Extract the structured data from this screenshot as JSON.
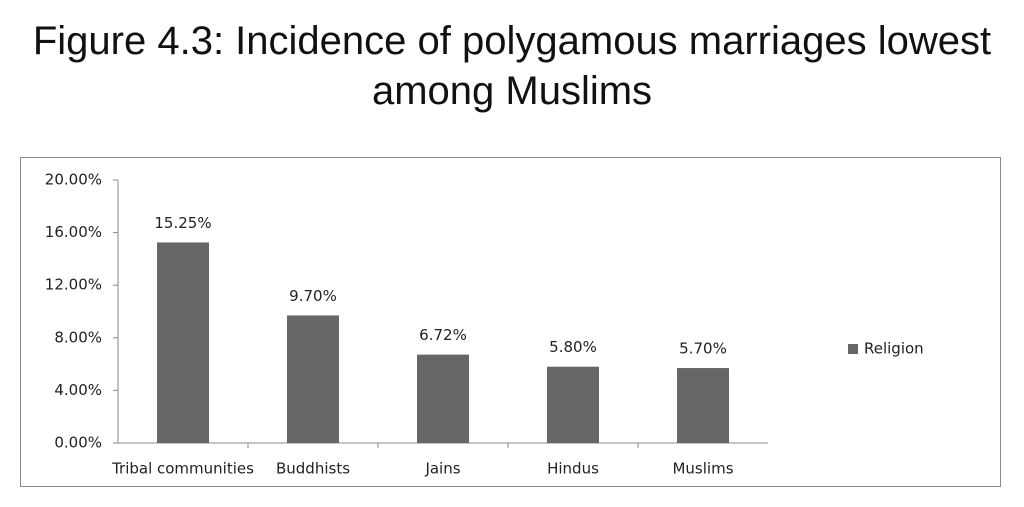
{
  "chart_data": {
    "type": "bar",
    "title": "Figure 4.3: Incidence of polygamous marriages lowest among Muslims",
    "categories": [
      "Tribal communities",
      "Buddhists",
      "Jains",
      "Hindus",
      "Muslims"
    ],
    "series": [
      {
        "name": "Religion",
        "color": "#666666",
        "values": [
          15.25,
          9.7,
          6.72,
          5.8,
          5.7
        ],
        "value_labels": [
          "15.25%",
          "9.70%",
          "6.72%",
          "5.80%",
          "5.70%"
        ]
      }
    ],
    "ylim": [
      0,
      20
    ],
    "yticks": [
      {
        "value": 0,
        "label": "0.00%"
      },
      {
        "value": 4,
        "label": "4.00%"
      },
      {
        "value": 8,
        "label": "8.00%"
      },
      {
        "value": 12,
        "label": "12.00%"
      },
      {
        "value": 16,
        "label": "16.00%"
      },
      {
        "value": 20,
        "label": "20.00%"
      }
    ],
    "legend": "right"
  }
}
